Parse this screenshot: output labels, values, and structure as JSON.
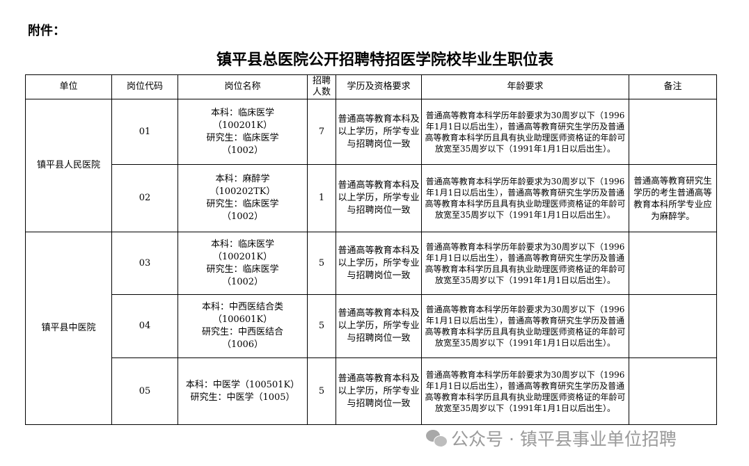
{
  "attachment_label": "附件：",
  "title": "镇平县总医院公开招聘特招医学院校毕业生职位表",
  "headers": [
    "单位",
    "岗位代码",
    "岗位名称",
    "招聘人数",
    "学历及资格要求",
    "年龄要求",
    "备注"
  ],
  "age_requirement": "普通高等教育本科学历年龄要求为30周岁以下（1996年1月1日以后出生），普通高等教育研究生学历及普通高等教育本科学历且具有执业助理医师资格证的年龄可放宽至35周岁以下（1991年1月1日以后出生）。",
  "education_requirement": "普通高等教育本科及以上学历，所学专业与招聘岗位一致",
  "units": [
    "镇平县人民医院",
    "镇平县中医院"
  ],
  "rows": [
    {
      "code": "01",
      "name_lines": [
        "本科：临床医学",
        "（100201K）",
        "研究生：临床医学",
        "（1002）"
      ],
      "count": "7",
      "note": ""
    },
    {
      "code": "02",
      "name_lines": [
        "本科：麻醉学",
        "（100202TK）",
        "研究生：临床医学",
        "（1002）"
      ],
      "count": "1",
      "note": "普通高等教育研究生学历的考生普通高等教育本科所学专业应为麻醉学。"
    },
    {
      "code": "03",
      "name_lines": [
        "本科：临床医学",
        "（100201K）",
        "研究生：临床医学",
        "（1002）"
      ],
      "count": "5",
      "note": ""
    },
    {
      "code": "04",
      "name_lines": [
        "本科：中西医结合类",
        "（100601K）",
        "研究生：中西医结合",
        "（1006）"
      ],
      "count": "5",
      "note": ""
    },
    {
      "code": "05",
      "name_lines": [
        "本科：中医学（100501K）",
        "研究生：中医学（1005）"
      ],
      "count": "5",
      "note": ""
    }
  ],
  "watermark": "公众号 · 镇平县事业单位招聘",
  "watermark_icon": "wechat-icon"
}
